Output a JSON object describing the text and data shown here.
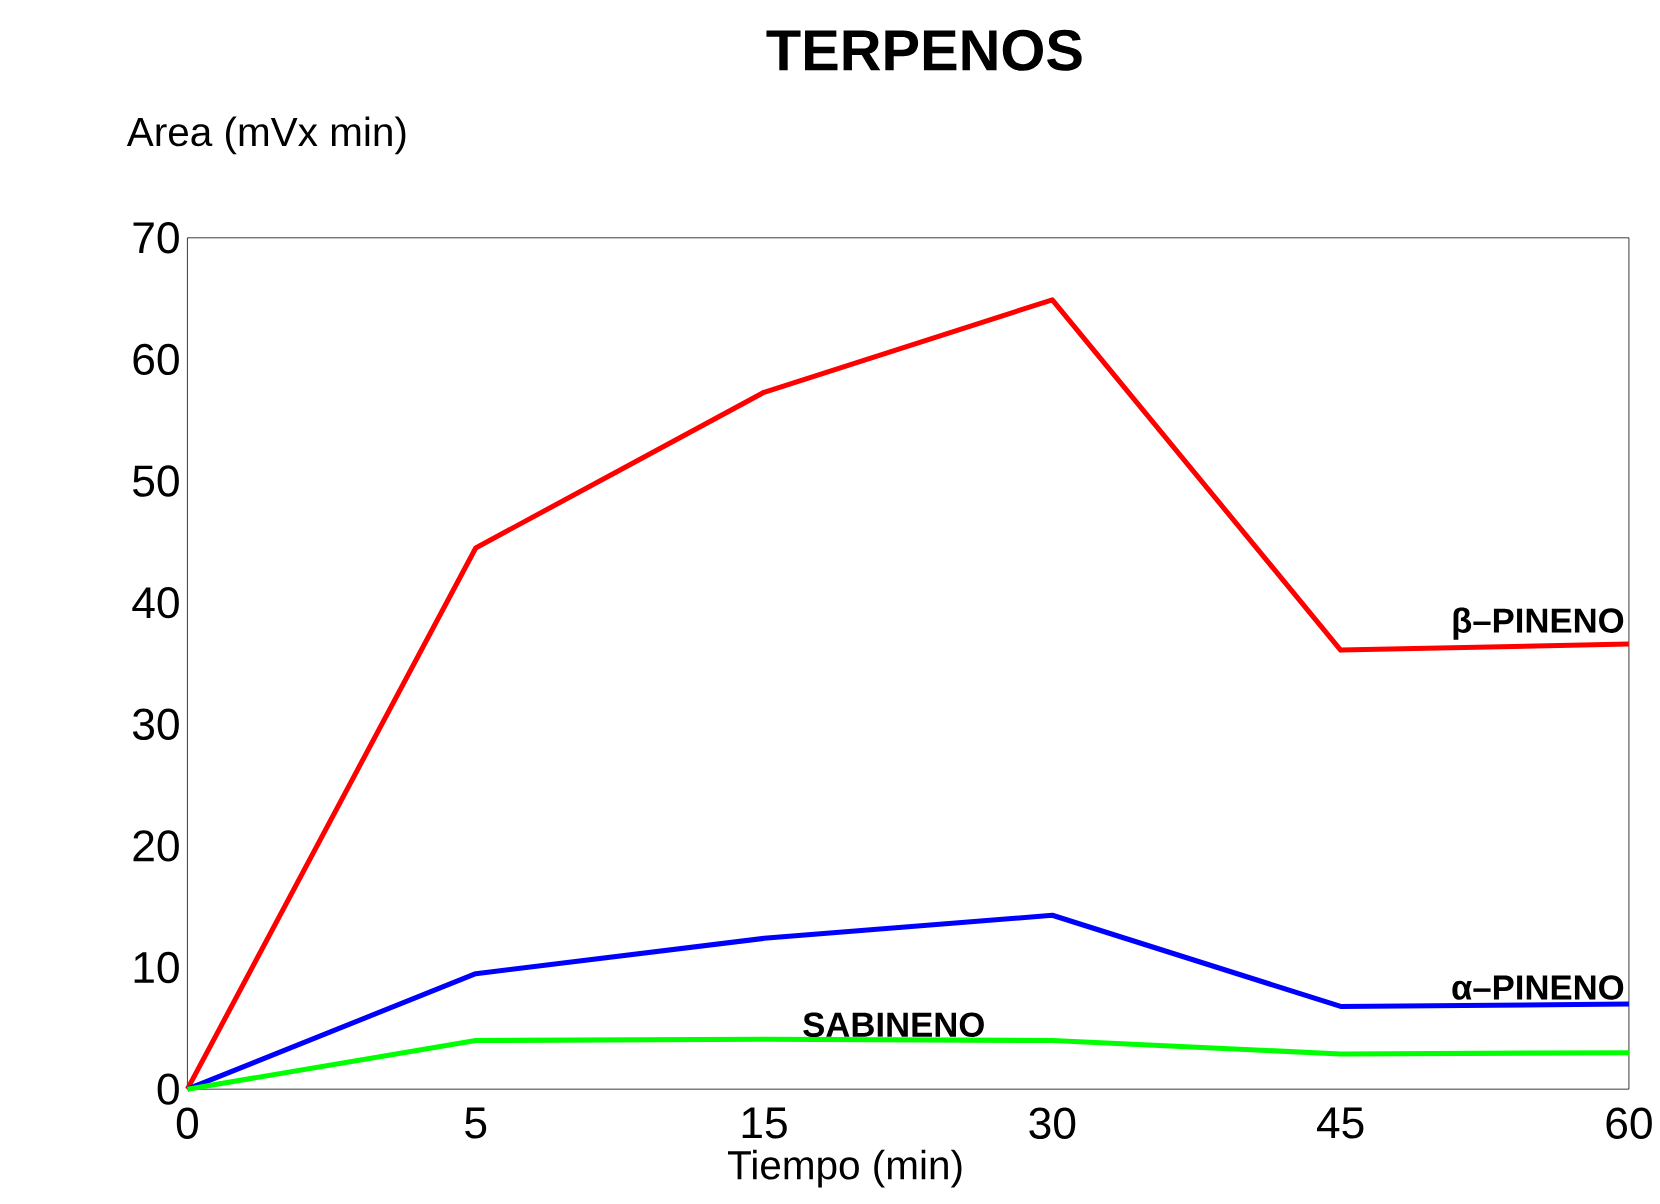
{
  "chart_data": {
    "type": "line",
    "title": "TERPENOS",
    "xlabel": "Tiempo (min)",
    "ylabel": "Area (mVx min)",
    "categories": [
      "0",
      "5",
      "15",
      "30",
      "45",
      "60"
    ],
    "ylim": [
      0,
      70
    ],
    "yticks": [
      0,
      10,
      20,
      30,
      40,
      50,
      60,
      70
    ],
    "grid": false,
    "legend": false,
    "marker": "none",
    "line_style": "solid",
    "series": [
      {
        "name": "β–PINENO",
        "color": "#ff0000",
        "values": [
          0,
          44.5,
          57.3,
          64.9,
          36.1,
          36.6
        ]
      },
      {
        "name": "α–PINENO",
        "color": "#0000ff",
        "values": [
          0,
          9.5,
          12.4,
          14.3,
          6.8,
          7.0
        ]
      },
      {
        "name": "SABINENO",
        "color": "#00ff00",
        "values": [
          0,
          4.0,
          4.1,
          4.0,
          2.9,
          3.0
        ]
      }
    ]
  }
}
